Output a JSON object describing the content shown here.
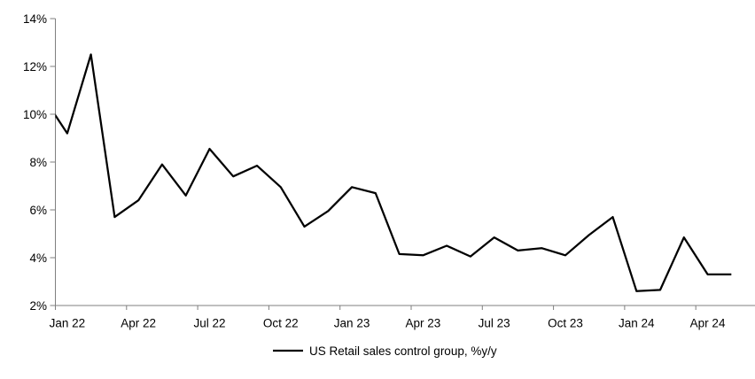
{
  "chart_data": {
    "type": "line",
    "title": "",
    "categories": [
      "Jan 22",
      "Feb 22",
      "Mar 22",
      "Apr 22",
      "May 22",
      "Jun 22",
      "Jul 22",
      "Aug 22",
      "Sep 22",
      "Oct 22",
      "Nov 22",
      "Dec 22",
      "Jan 23",
      "Feb 23",
      "Mar 23",
      "Apr 23",
      "May 23",
      "Jun 23",
      "Jul 23",
      "Aug 23",
      "Sep 23",
      "Oct 23",
      "Nov 23",
      "Dec 23",
      "Jan 24",
      "Feb 24",
      "Mar 24",
      "Apr 24",
      "May 24"
    ],
    "series": [
      {
        "name": "US Retail sales control group, %y/y",
        "values": [
          9.2,
          12.5,
          5.7,
          6.4,
          7.9,
          6.6,
          8.55,
          7.4,
          7.85,
          6.95,
          5.3,
          5.95,
          6.95,
          6.7,
          4.15,
          4.1,
          4.5,
          4.05,
          4.85,
          4.3,
          4.4,
          4.1,
          4.95,
          5.7,
          2.6,
          2.65,
          4.85,
          3.3,
          3.3
        ]
      }
    ],
    "clipped_lead_in": {
      "category": "Dec 21",
      "value": 10.7
    },
    "x_axis": {
      "tick_labels": [
        "Jan 22",
        "Apr 22",
        "Jul 22",
        "Oct 22",
        "Jan 23",
        "Apr 23",
        "Jul 23",
        "Oct 23",
        "Jan 24",
        "Apr 24"
      ],
      "label_interval_months": 3
    },
    "y_axis": {
      "tick_labels": [
        "2%",
        "4%",
        "6%",
        "8%",
        "10%",
        "12%",
        "14%"
      ],
      "min": 2,
      "max": 14,
      "step": 2,
      "unit": "%"
    },
    "ylim": [
      2,
      14
    ],
    "grid": false,
    "legend": {
      "label": "US Retail sales control group, %y/y",
      "position": "bottom-center"
    },
    "colors": {
      "line": "#000000",
      "axis": "#7f7f7f",
      "text": "#000000",
      "background": "#ffffff"
    }
  }
}
